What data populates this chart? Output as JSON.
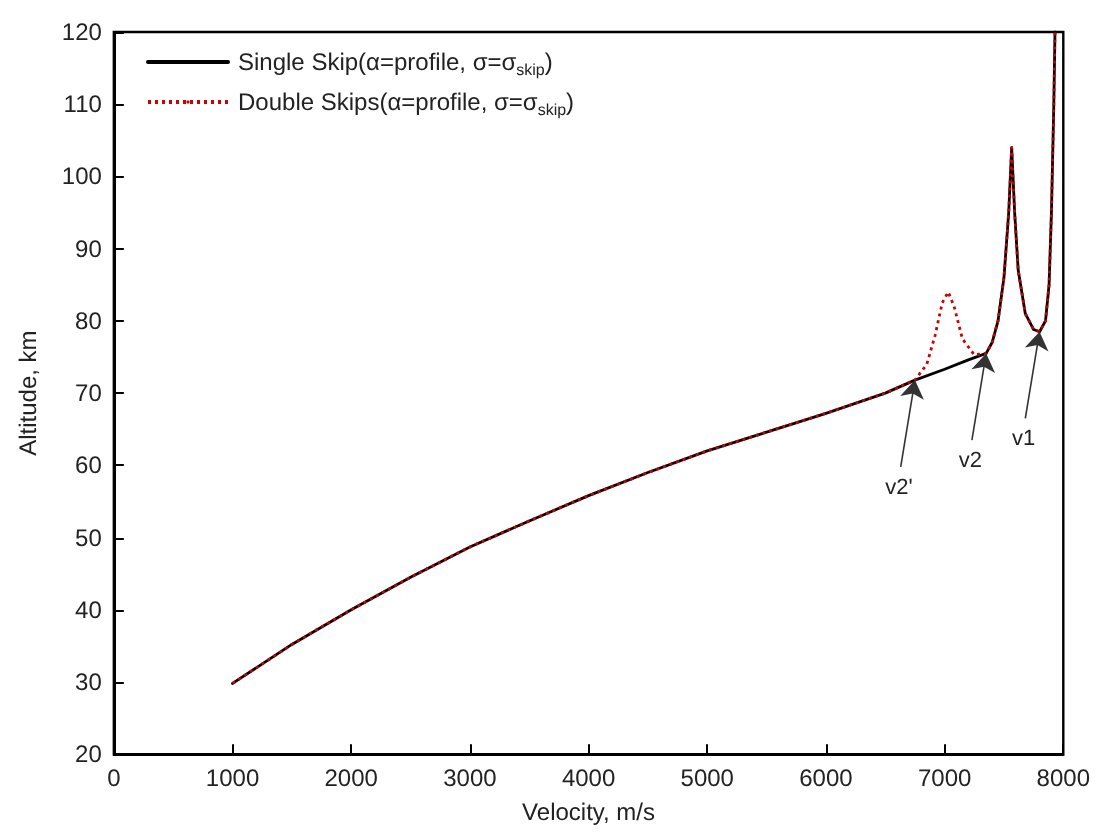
{
  "chart_data": {
    "type": "line",
    "xlabel": "Velocity, m/s",
    "ylabel": "Altitude, km",
    "xlim": [
      0,
      8000
    ],
    "ylim": [
      20,
      120
    ],
    "xticks": [
      0,
      1000,
      2000,
      3000,
      4000,
      5000,
      6000,
      7000,
      8000
    ],
    "yticks": [
      20,
      30,
      40,
      50,
      60,
      70,
      80,
      90,
      100,
      110,
      120
    ],
    "grid": false,
    "legend": "top left",
    "marker": "none",
    "series": [
      {
        "name": "Single Skip(α=profile, σ=σ$_{skip}$)",
        "color": "#000000",
        "line_style": "solid",
        "x": [
          1000,
          1500,
          2000,
          2500,
          3000,
          3500,
          4000,
          4500,
          5000,
          5500,
          6000,
          6500,
          6750,
          7000,
          7200,
          7350,
          7400,
          7450,
          7500,
          7540,
          7565,
          7590,
          7620,
          7680,
          7750,
          7800,
          7850,
          7880,
          7900,
          7920,
          7930
        ],
        "values": [
          29.8,
          35.2,
          40,
          44.5,
          48.7,
          52.3,
          55.8,
          59,
          62,
          64.6,
          67.2,
          70,
          71.8,
          73.3,
          74.6,
          75.5,
          77,
          80,
          86,
          95,
          104,
          95,
          87,
          81,
          78.8,
          78.5,
          80,
          85,
          95,
          110,
          120
        ]
      },
      {
        "name": "Double Skips(α=profile, σ=σ$_{skip}$)",
        "color": "#cc0000",
        "line_style": "dotted",
        "x": [
          1000,
          1500,
          2000,
          2500,
          3000,
          3500,
          4000,
          4500,
          5000,
          5500,
          6000,
          6500,
          6750,
          6850,
          6920,
          6980,
          7030,
          7080,
          7150,
          7250,
          7350,
          7400,
          7450,
          7500,
          7540,
          7565,
          7590,
          7620,
          7680,
          7750,
          7800,
          7850,
          7880,
          7900,
          7920,
          7930
        ],
        "values": [
          29.8,
          35.2,
          40,
          44.5,
          48.7,
          52.3,
          55.8,
          59,
          62,
          64.6,
          67.2,
          70,
          71.8,
          74,
          78,
          82.5,
          84,
          82,
          77.5,
          75.3,
          75.5,
          77,
          80,
          86,
          95,
          104,
          95,
          87,
          81,
          78.8,
          78.5,
          80,
          85,
          95,
          110,
          120
        ]
      }
    ],
    "annotations": [
      {
        "text": "v2'",
        "x": 6750,
        "y": 71.8
      },
      {
        "text": "v2",
        "x": 7350,
        "y": 75.5
      },
      {
        "text": "v1",
        "x": 7800,
        "y": 78.5
      }
    ]
  }
}
